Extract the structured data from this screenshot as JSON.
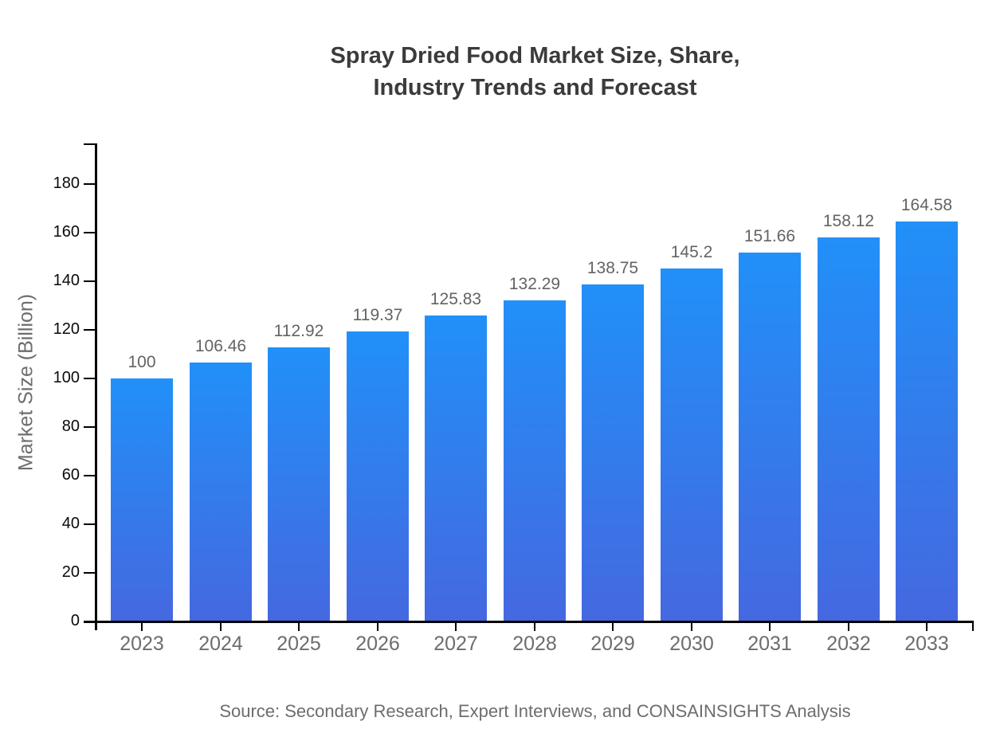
{
  "title": {
    "line1": "Spray Dried Food Market Size, Share,",
    "line2": "Industry Trends and Forecast"
  },
  "source": "Source: Secondary Research, Expert Interviews, and CONSAINSIGHTS Analysis",
  "chart_data": {
    "type": "bar",
    "title": "Spray Dried Food Market Size, Share, Industry Trends and Forecast",
    "categories": [
      "2023",
      "2024",
      "2025",
      "2026",
      "2027",
      "2028",
      "2029",
      "2030",
      "2031",
      "2032",
      "2033"
    ],
    "values": [
      100,
      106.46,
      112.92,
      119.37,
      125.83,
      132.29,
      138.75,
      145.2,
      151.66,
      158.12,
      164.58
    ],
    "xlabel": "",
    "ylabel": "Market Size (Billion)",
    "ylim": [
      0,
      197
    ],
    "yticks": [
      0,
      20,
      40,
      60,
      80,
      100,
      120,
      140,
      160,
      180
    ],
    "grid": false,
    "legend": "none",
    "data_labels": true,
    "colors": {
      "bar_gradient_top": "#2190f8",
      "bar_gradient_bottom": "#4568e0",
      "axis": "#000000",
      "ytick_text": "#0a0a0a",
      "xtick_text": "#6d6d6d",
      "value_text": "#636363",
      "title_text": "#3b3b3b",
      "muted_text": "#6d6d6d",
      "background": "#ffffff"
    }
  }
}
